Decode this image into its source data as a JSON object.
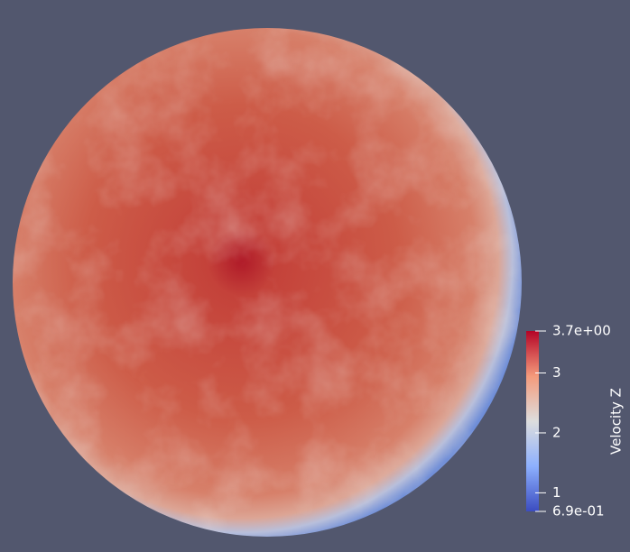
{
  "colorbar": {
    "title": "Velocity Z",
    "max": {
      "value": 3.7,
      "label": "3.7e+00"
    },
    "min": {
      "value": 0.69,
      "label": "6.9e-01"
    },
    "ticks": [
      3,
      2,
      1
    ]
  }
}
